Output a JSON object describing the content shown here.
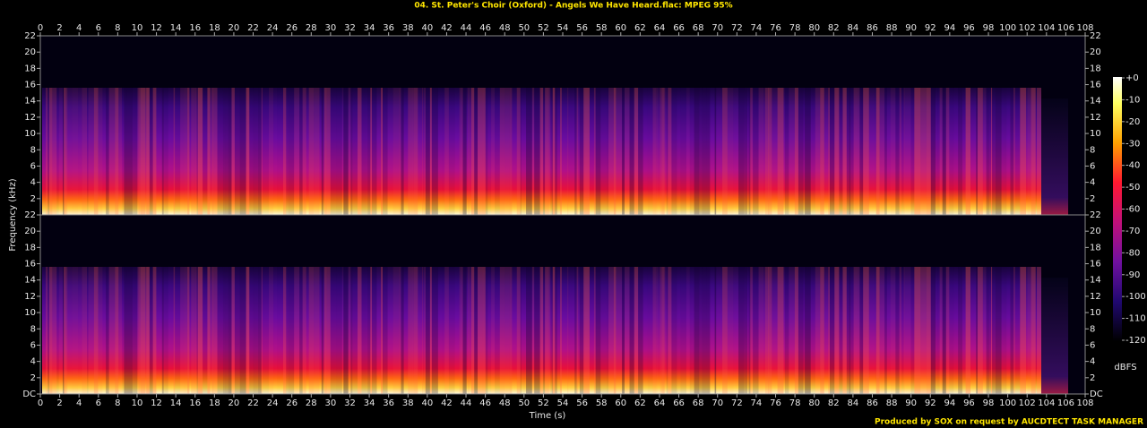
{
  "chart_data": {
    "type": "spectrogram",
    "title": "04. St. Peter's Choir (Oxford) - Angels We Have Heard.flac: MPEG 95%",
    "xlabel": "Time (s)",
    "ylabel": "Frequency (kHz)",
    "xlim": [
      0,
      108
    ],
    "xticks": [
      0,
      2,
      4,
      6,
      8,
      10,
      12,
      14,
      16,
      18,
      20,
      22,
      24,
      26,
      28,
      30,
      32,
      34,
      36,
      38,
      40,
      42,
      44,
      46,
      48,
      50,
      52,
      54,
      56,
      58,
      60,
      62,
      64,
      66,
      68,
      70,
      72,
      74,
      76,
      78,
      80,
      82,
      84,
      86,
      88,
      90,
      92,
      94,
      96,
      98,
      100,
      102,
      104,
      106,
      108
    ],
    "ylim": [
      0,
      22
    ],
    "yticks": [
      {
        "value": 0,
        "label": "DC"
      },
      2,
      4,
      6,
      8,
      10,
      12,
      14,
      16,
      18,
      20,
      22
    ],
    "colorbar": {
      "label": "dBFS",
      "lim": [
        -120,
        0
      ],
      "ticks": [
        {
          "value": 0,
          "label": "+0"
        },
        -10,
        -20,
        -30,
        -40,
        -50,
        -60,
        -70,
        -80,
        -90,
        -100,
        -110,
        -120
      ]
    },
    "footer": "Produced by SOX on request by AUCDTECT TASK MANAGER"
  }
}
